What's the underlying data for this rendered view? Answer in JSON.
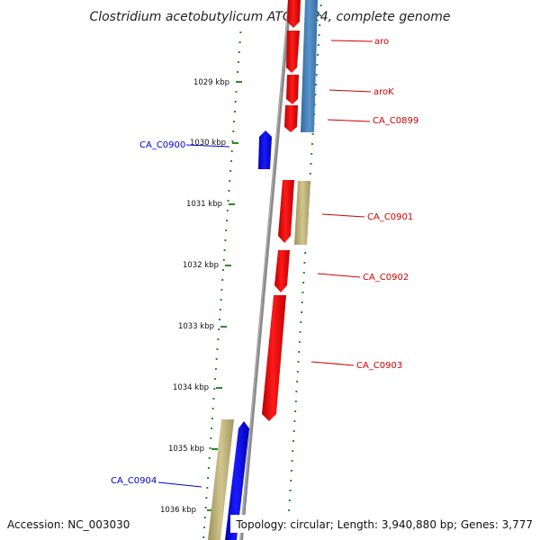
{
  "title": "Clostridium acetobutylicum ATCC 824, complete genome",
  "accession": "Accession: NC_003030",
  "topology": "Topology: circular; Length: 3,940,880 bp; Genes: 3,777",
  "colors": {
    "backbone": "#8a8a8a",
    "cds_forward": "#ff0000",
    "cds_reverse": "#0000ee",
    "rna_blue": "#4a86c0",
    "khaki": "#c8bc82",
    "ticks": "#2a8a2a",
    "label_reverse": "#0000cc",
    "label_forward": "#cc0000"
  },
  "scale_labels": [
    "1029 kbp",
    "1030 kbp",
    "1031 kbp",
    "1032 kbp",
    "1033 kbp",
    "1034 kbp",
    "1035 kbp",
    "1036 kbp"
  ],
  "gene_labels": [
    {
      "text": "aro",
      "strand": "forward"
    },
    {
      "text": "aroK",
      "strand": "forward"
    },
    {
      "text": "CA_C0899",
      "strand": "forward"
    },
    {
      "text": "CA_C0900",
      "strand": "reverse"
    },
    {
      "text": "CA_C0901",
      "strand": "forward"
    },
    {
      "text": "CA_C0902",
      "strand": "forward"
    },
    {
      "text": "CA_C0903",
      "strand": "forward"
    },
    {
      "text": "CA_C0904",
      "strand": "reverse"
    }
  ]
}
